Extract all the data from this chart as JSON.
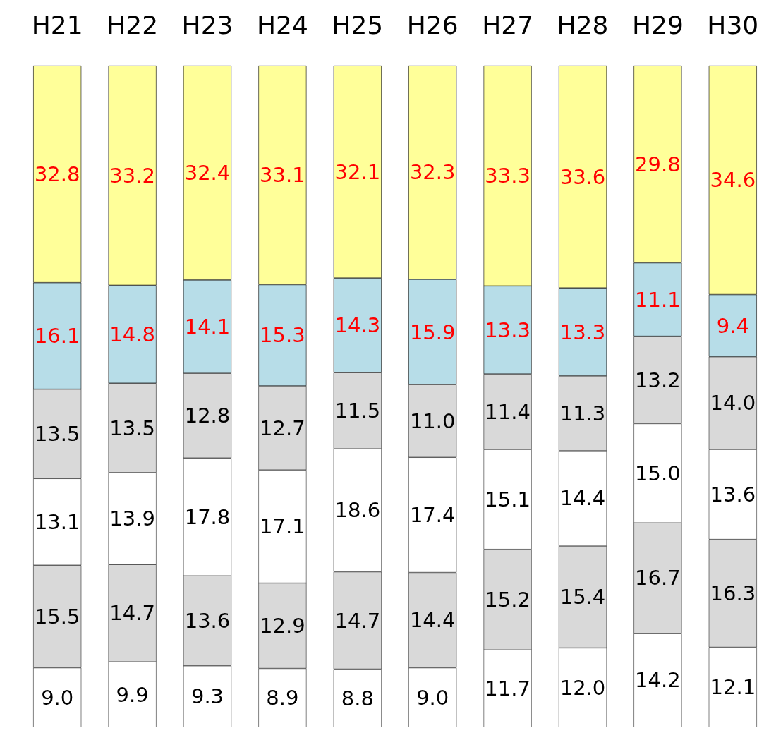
{
  "chart_data": {
    "type": "bar",
    "stacked": true,
    "categories": [
      "H21",
      "H22",
      "H23",
      "H24",
      "H25",
      "H26",
      "H27",
      "H28",
      "H29",
      "H30"
    ],
    "series": [
      {
        "color": "#ffffff",
        "values": [
          9.0,
          9.9,
          9.3,
          8.9,
          8.8,
          9.0,
          11.7,
          12.0,
          14.2,
          12.1
        ],
        "value_labels": [
          "9.0",
          "9.9",
          "9.3",
          "8.9",
          "8.8",
          "9.0",
          "11.7",
          "12.0",
          "14.2",
          "12.1"
        ]
      },
      {
        "color": "#d9d9d9",
        "values": [
          15.5,
          14.7,
          13.6,
          12.9,
          14.7,
          14.4,
          15.2,
          15.4,
          16.7,
          16.3
        ],
        "value_labels": [
          "15.5",
          "14.7",
          "13.6",
          "12.9",
          "14.7",
          "14.4",
          "15.2",
          "15.4",
          "16.7",
          "16.3"
        ]
      },
      {
        "color": "#ffffff",
        "values": [
          13.1,
          13.9,
          17.8,
          17.1,
          18.6,
          17.4,
          15.1,
          14.4,
          15.0,
          13.6
        ],
        "value_labels": [
          "13.1",
          "13.9",
          "17.8",
          "17.1",
          "18.6",
          "17.4",
          "15.1",
          "14.4",
          "15.0",
          "13.6"
        ]
      },
      {
        "color": "#d9d9d9",
        "values": [
          13.5,
          13.5,
          12.8,
          12.7,
          11.5,
          11.0,
          11.4,
          11.3,
          13.2,
          14.0
        ],
        "value_labels": [
          "13.5",
          "13.5",
          "12.8",
          "12.7",
          "11.5",
          "11.0",
          "11.4",
          "11.3",
          "13.2",
          "14.0"
        ]
      },
      {
        "color": "#b7dde8",
        "values": [
          16.1,
          14.8,
          14.1,
          15.3,
          14.3,
          15.9,
          13.3,
          13.3,
          11.1,
          9.4
        ],
        "value_labels": [
          "16.1",
          "14.8",
          "14.1",
          "15.3",
          "14.3",
          "15.9",
          "13.3",
          "13.3",
          "11.1",
          "9.4"
        ]
      },
      {
        "color": "#ffff99",
        "values": [
          32.8,
          33.2,
          32.4,
          33.1,
          32.1,
          32.3,
          33.3,
          33.6,
          29.8,
          34.6
        ],
        "value_labels": [
          "32.8",
          "33.2",
          "32.4",
          "33.1",
          "32.1",
          "32.3",
          "33.3",
          "33.6",
          "29.8",
          "34.6"
        ]
      }
    ],
    "grid": false,
    "tick_labels": "x"
  }
}
